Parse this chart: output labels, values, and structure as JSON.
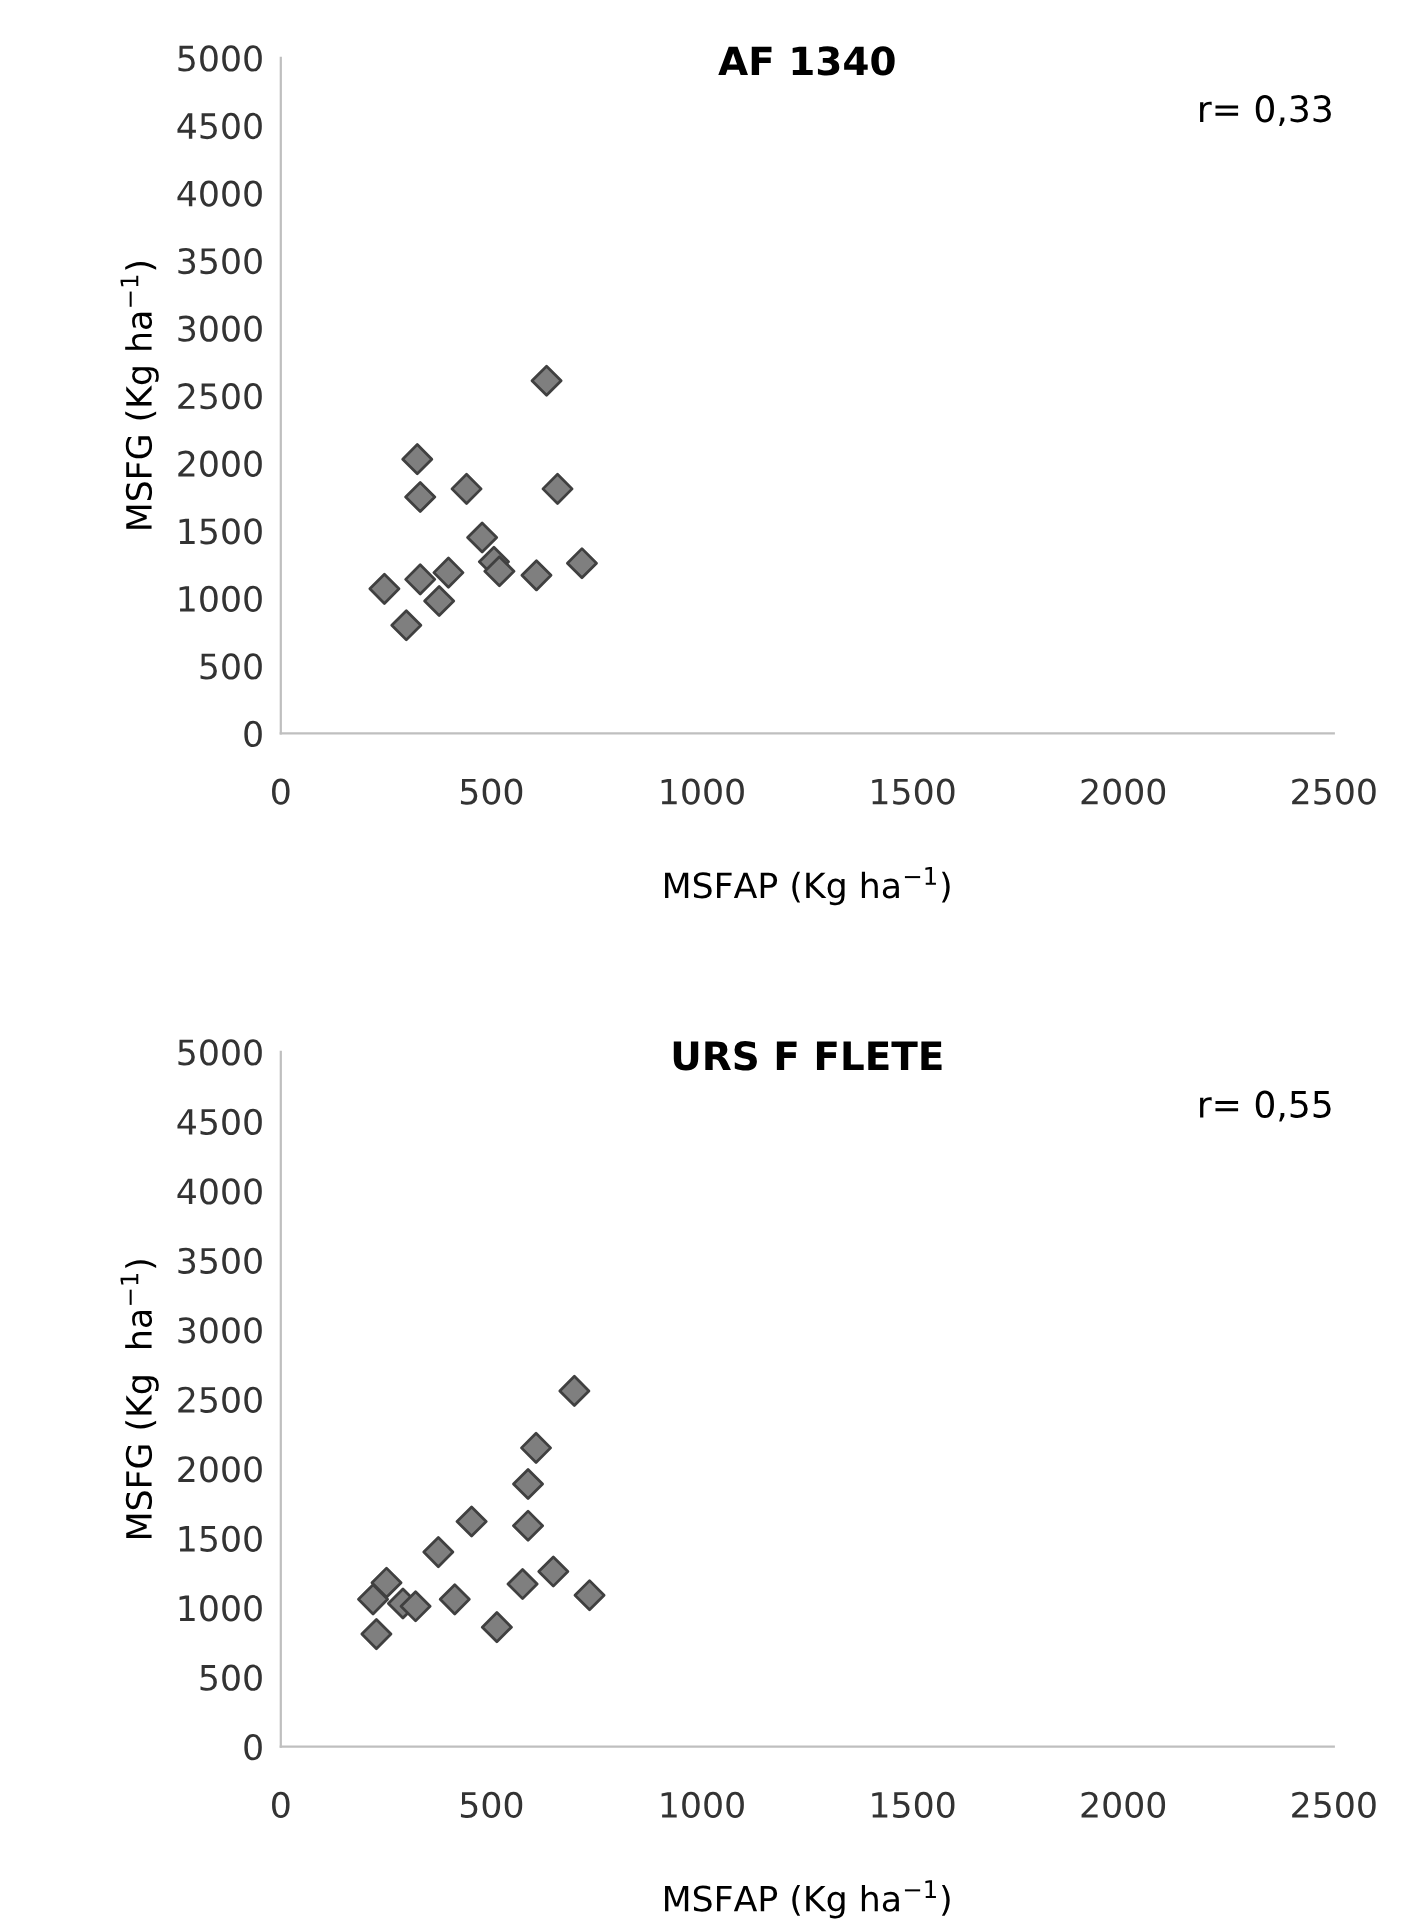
{
  "chart_data": [
    {
      "type": "scatter",
      "title": "AF 1340",
      "xlabel": "MSFAP (Kg ha$^{−1}$)",
      "ylabel": "MSFG (Kg ha$^{−1}$)",
      "annotations": [
        "r= 0,33"
      ],
      "x": [
        246,
        298,
        324,
        331,
        331,
        376,
        398,
        441,
        478,
        506,
        519,
        607,
        631,
        657,
        715
      ],
      "series": [
        {
          "color": "#7f7f7f",
          "values": [
            1070,
            800,
            2030,
            1750,
            1140,
            980,
            1190,
            1810,
            1450,
            1270,
            1200,
            1170,
            2610,
            1810,
            1260
          ]
        }
      ],
      "xlim": [
        0,
        2500
      ],
      "xticks": [
        0,
        500,
        1000,
        1500,
        2000,
        2500
      ],
      "ylim": [
        0,
        5000
      ],
      "yticks": [
        0,
        500,
        1000,
        1500,
        2000,
        2500,
        3000,
        3500,
        4000,
        4500,
        5000
      ],
      "grid": false,
      "legend": false,
      "marker": "diamond"
    },
    {
      "type": "scatter",
      "title": "URS F FLETE",
      "xlabel": "MSFAP (Kg ha$^{−1}$)",
      "ylabel": "MSFG (Kg  ha$^{−1}$)",
      "annotations": [
        "r= 0,55"
      ],
      "x": [
        697,
        606,
        587,
        453,
        587,
        374,
        251,
        219,
        290,
        320,
        413,
        574,
        647,
        733,
        227,
        513
      ],
      "series": [
        {
          "color": "#7f7f7f",
          "values": [
            2560,
            2150,
            1890,
            1620,
            1590,
            1400,
            1180,
            1060,
            1030,
            1010,
            1060,
            1170,
            1260,
            1090,
            810,
            860
          ]
        }
      ],
      "xlim": [
        0,
        2500
      ],
      "xticks": [
        0,
        500,
        1000,
        1500,
        2000,
        2500
      ],
      "ylim": [
        0,
        5000
      ],
      "yticks": [
        0,
        500,
        1000,
        1500,
        2000,
        2500,
        3000,
        3500,
        4000,
        4500,
        5000
      ],
      "grid": false,
      "legend": false,
      "marker": "diamond"
    }
  ]
}
